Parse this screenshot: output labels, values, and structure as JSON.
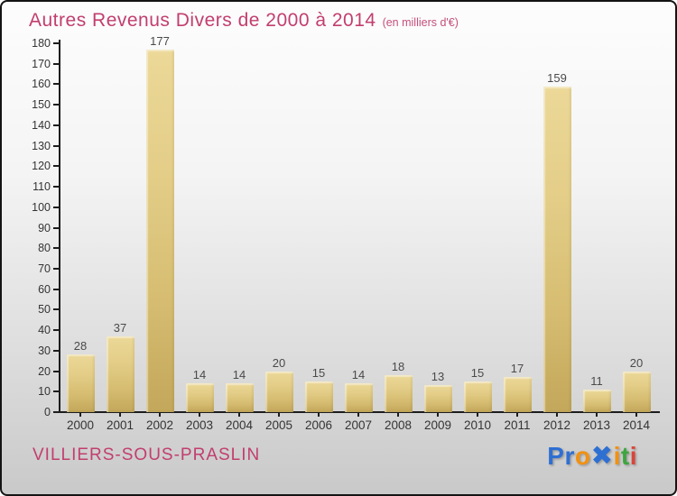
{
  "header": {
    "title": "Autres Revenus Divers de 2000 à 2014",
    "subtitle": "(en milliers d'€)"
  },
  "chart_data": {
    "type": "bar",
    "title": "Autres Revenus Divers de 2000 à 2014 (en milliers d'€)",
    "categories": [
      "2000",
      "2001",
      "2002",
      "2003",
      "2004",
      "2005",
      "2006",
      "2007",
      "2008",
      "2009",
      "2010",
      "2011",
      "2012",
      "2013",
      "2014"
    ],
    "values": [
      28,
      37,
      177,
      14,
      14,
      20,
      15,
      14,
      18,
      13,
      15,
      17,
      159,
      11,
      20
    ],
    "xlabel": "",
    "ylabel": "",
    "ylim": [
      0,
      180
    ],
    "ytick_step": 10,
    "grid": false,
    "legend_position": "none",
    "value_labels_shown": true,
    "bar_color_top": "#ecd898",
    "bar_color_bottom": "#c3a75a"
  },
  "footer": {
    "place_name": "VILLIERS-SOUS-PRASLIN",
    "logo": {
      "text": "Proxiti",
      "letters": [
        {
          "char": "P",
          "color": "#2e6fd2"
        },
        {
          "char": "r",
          "color": "#2e6fd2"
        },
        {
          "char": "o",
          "color": "#f29111"
        },
        {
          "char": "✖",
          "color": "#2e6fd2"
        },
        {
          "char": "i",
          "color": "#f29111"
        },
        {
          "char": "t",
          "color": "#3fa53f"
        },
        {
          "char": "i",
          "color": "#d9463a"
        }
      ]
    }
  },
  "colors": {
    "title_accent": "#c23e6e",
    "axis": "#1d1d1d",
    "tick_label": "#343434",
    "value_label": "#4a4a4a",
    "background_top": "#fdfdfd",
    "background_bottom": "#c9c9c9"
  }
}
